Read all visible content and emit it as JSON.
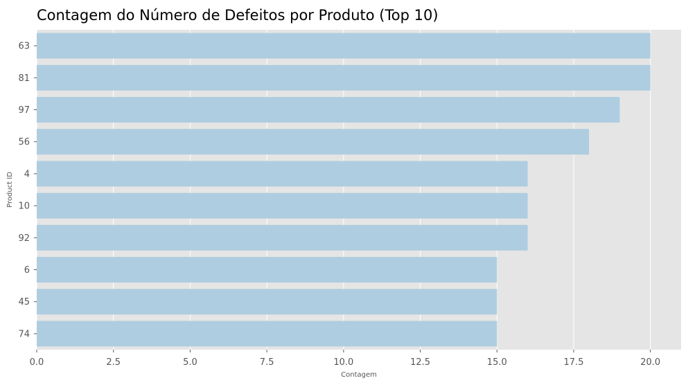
{
  "chart_data": {
    "type": "bar",
    "orientation": "horizontal",
    "title": "Contagem do Número de Defeitos por Produto (Top 10)",
    "xlabel": "Contagem",
    "ylabel": "Product ID",
    "categories": [
      "63",
      "81",
      "97",
      "56",
      "4",
      "10",
      "92",
      "6",
      "45",
      "74"
    ],
    "values": [
      20,
      20,
      19,
      18,
      16,
      16,
      16,
      15,
      15,
      15
    ],
    "xlim": [
      0,
      21
    ],
    "xticks": [
      0,
      2.5,
      5,
      7.5,
      10,
      12.5,
      15,
      17.5,
      20
    ],
    "xtick_labels": [
      "0.0",
      "2.5",
      "5.0",
      "7.5",
      "10.0",
      "12.5",
      "15.0",
      "17.5",
      "20.0"
    ],
    "grid": true,
    "colors": {
      "bar": "#aecde0",
      "plot_background": "#e5e5e5",
      "grid": "#ffffff",
      "text": "#555555"
    }
  }
}
